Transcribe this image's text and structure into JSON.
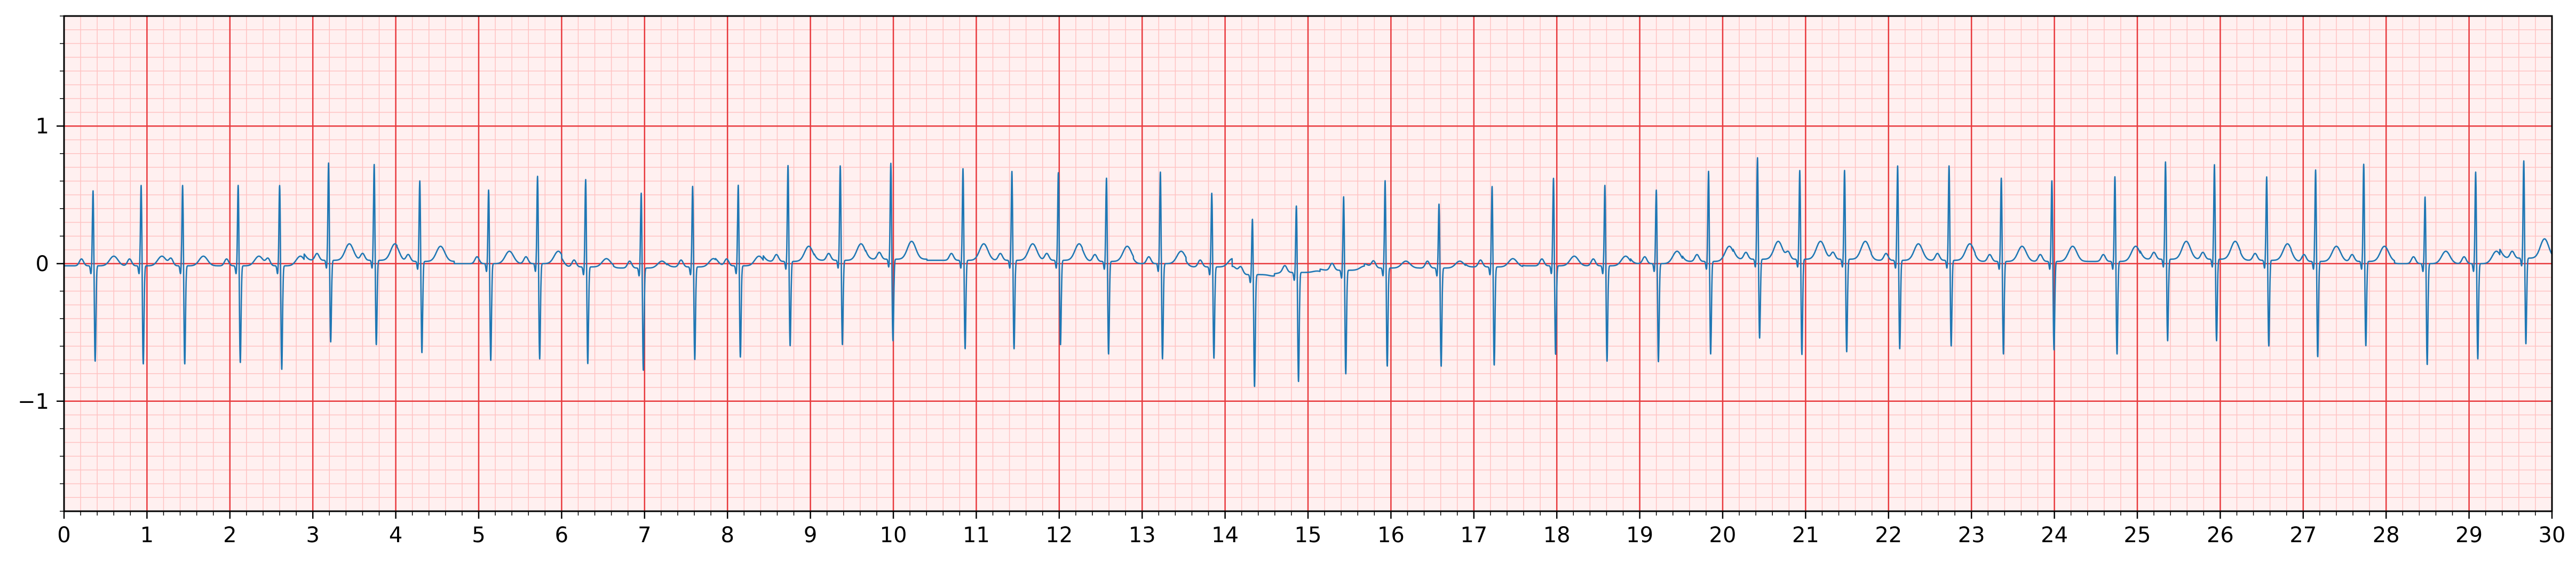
{
  "chart_data": {
    "type": "line",
    "title": "",
    "xlabel": "",
    "ylabel": "",
    "xlim": [
      0,
      30
    ],
    "ylim": [
      -1.8,
      1.8
    ],
    "x_ticks": [
      0,
      1,
      2,
      3,
      4,
      5,
      6,
      7,
      8,
      9,
      10,
      11,
      12,
      13,
      14,
      15,
      16,
      17,
      18,
      19,
      20,
      21,
      22,
      23,
      24,
      25,
      26,
      27,
      28,
      29,
      30
    ],
    "x_tick_labels": [
      "0",
      "1",
      "2",
      "3",
      "4",
      "5",
      "6",
      "7",
      "8",
      "9",
      "10",
      "11",
      "12",
      "13",
      "14",
      "15",
      "16",
      "17",
      "18",
      "19",
      "20",
      "21",
      "22",
      "23",
      "24",
      "25",
      "26",
      "27",
      "28",
      "29",
      "30"
    ],
    "y_ticks": [
      -1,
      0,
      1
    ],
    "y_tick_labels": [
      "−1",
      "0",
      "1"
    ],
    "grid": {
      "major": true,
      "minor": true,
      "major_step_x": 1,
      "minor_step_x": 0.2,
      "major_step_y": 1,
      "minor_step_y": 0.1,
      "major_color": "#e8393d",
      "minor_color": "#ffc2c2"
    },
    "background_color": "#fff0f0",
    "series": [
      {
        "color": "#1f77b4",
        "beats": [
          {
            "t": 0.35,
            "r": 0.56,
            "s": -0.7,
            "st": -0.02
          },
          {
            "t": 0.93,
            "r": 0.6,
            "s": -0.72,
            "st": -0.02
          },
          {
            "t": 1.43,
            "r": 0.6,
            "s": -0.72,
            "st": -0.02
          },
          {
            "t": 2.1,
            "r": 0.6,
            "s": -0.71,
            "st": -0.02
          },
          {
            "t": 2.6,
            "r": 0.6,
            "s": -0.76,
            "st": -0.02
          },
          {
            "t": 3.19,
            "r": 0.72,
            "s": -0.6,
            "st": 0.03
          },
          {
            "t": 3.74,
            "r": 0.71,
            "s": -0.62,
            "st": 0.03
          },
          {
            "t": 4.29,
            "r": 0.6,
            "s": -0.67,
            "st": 0.02
          },
          {
            "t": 5.12,
            "r": 0.55,
            "s": -0.71,
            "st": 0.0
          },
          {
            "t": 5.71,
            "r": 0.65,
            "s": -0.7,
            "st": 0.0
          },
          {
            "t": 6.29,
            "r": 0.65,
            "s": -0.71,
            "st": -0.03
          },
          {
            "t": 6.96,
            "r": 0.56,
            "s": -0.75,
            "st": -0.04
          },
          {
            "t": 7.58,
            "r": 0.6,
            "s": -0.68,
            "st": -0.03
          },
          {
            "t": 8.13,
            "r": 0.6,
            "s": -0.67,
            "st": -0.02
          },
          {
            "t": 8.73,
            "r": 0.71,
            "s": -0.62,
            "st": 0.02
          },
          {
            "t": 9.36,
            "r": 0.7,
            "s": -0.62,
            "st": 0.03
          },
          {
            "t": 9.97,
            "r": 0.71,
            "s": -0.6,
            "st": 0.04
          },
          {
            "t": 10.84,
            "r": 0.68,
            "s": -0.65,
            "st": 0.03
          },
          {
            "t": 11.43,
            "r": 0.66,
            "s": -0.65,
            "st": 0.03
          },
          {
            "t": 11.99,
            "r": 0.65,
            "s": -0.62,
            "st": 0.03
          },
          {
            "t": 12.57,
            "r": 0.62,
            "s": -0.68,
            "st": 0.02
          },
          {
            "t": 13.22,
            "r": 0.68,
            "s": -0.7,
            "st": 0.0
          },
          {
            "t": 13.84,
            "r": 0.55,
            "s": -0.67,
            "st": -0.03
          },
          {
            "t": 14.33,
            "r": 0.42,
            "s": -0.82,
            "st": -0.1
          },
          {
            "t": 14.86,
            "r": 0.5,
            "s": -0.8,
            "st": -0.08
          },
          {
            "t": 15.43,
            "r": 0.55,
            "s": -0.76,
            "st": -0.06
          },
          {
            "t": 15.93,
            "r": 0.65,
            "s": -0.72,
            "st": -0.04
          },
          {
            "t": 16.58,
            "r": 0.48,
            "s": -0.72,
            "st": -0.04
          },
          {
            "t": 17.22,
            "r": 0.6,
            "s": -0.72,
            "st": -0.03
          },
          {
            "t": 17.96,
            "r": 0.65,
            "s": -0.65,
            "st": -0.02
          },
          {
            "t": 18.58,
            "r": 0.6,
            "s": -0.7,
            "st": -0.02
          },
          {
            "t": 19.2,
            "r": 0.55,
            "s": -0.72,
            "st": 0.0
          },
          {
            "t": 19.83,
            "r": 0.67,
            "s": -0.68,
            "st": 0.02
          },
          {
            "t": 20.42,
            "r": 0.75,
            "s": -0.58,
            "st": 0.04
          },
          {
            "t": 20.93,
            "r": 0.66,
            "s": -0.7,
            "st": 0.04
          },
          {
            "t": 21.47,
            "r": 0.66,
            "s": -0.68,
            "st": 0.04
          },
          {
            "t": 22.11,
            "r": 0.7,
            "s": -0.65,
            "st": 0.03
          },
          {
            "t": 22.73,
            "r": 0.7,
            "s": -0.63,
            "st": 0.03
          },
          {
            "t": 23.36,
            "r": 0.62,
            "s": -0.68,
            "st": 0.02
          },
          {
            "t": 23.97,
            "r": 0.6,
            "s": -0.65,
            "st": 0.02
          },
          {
            "t": 24.73,
            "r": 0.63,
            "s": -0.68,
            "st": 0.02
          },
          {
            "t": 25.34,
            "r": 0.72,
            "s": -0.6,
            "st": 0.04
          },
          {
            "t": 25.93,
            "r": 0.7,
            "s": -0.6,
            "st": 0.04
          },
          {
            "t": 26.56,
            "r": 0.62,
            "s": -0.63,
            "st": 0.03
          },
          {
            "t": 27.15,
            "r": 0.68,
            "s": -0.7,
            "st": 0.02
          },
          {
            "t": 27.73,
            "r": 0.72,
            "s": -0.62,
            "st": 0.02
          },
          {
            "t": 28.47,
            "r": 0.5,
            "s": -0.74,
            "st": 0.0
          },
          {
            "t": 29.08,
            "r": 0.68,
            "s": -0.7,
            "st": 0.0
          },
          {
            "t": 29.66,
            "r": 0.72,
            "s": -0.63,
            "st": 0.05
          }
        ]
      }
    ]
  }
}
